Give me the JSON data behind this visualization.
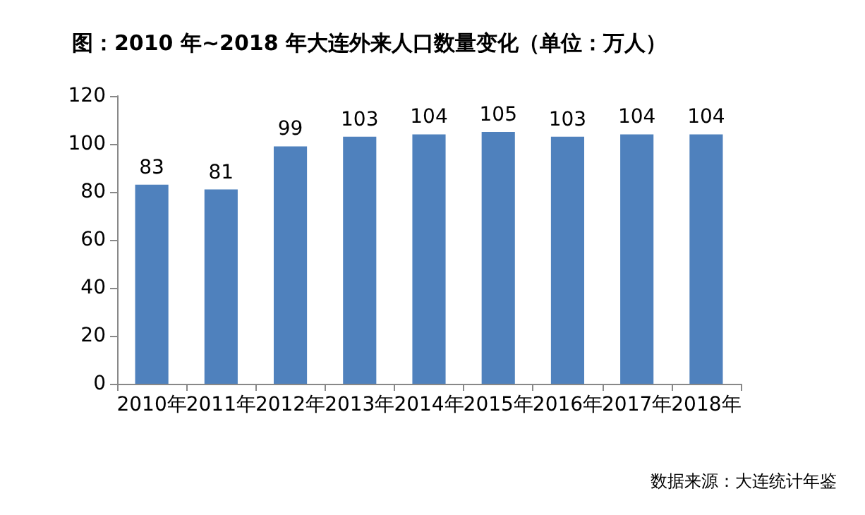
{
  "chart_data": {
    "type": "bar",
    "title": "图：2010 年~2018 年大连外来人口数量变化（单位：万人）",
    "categories": [
      "2010年",
      "2011年",
      "2012年",
      "2013年",
      "2014年",
      "2015年",
      "2016年",
      "2017年",
      "2018年"
    ],
    "values": [
      83,
      81,
      99,
      103,
      104,
      105,
      103,
      104,
      104
    ],
    "color": "#4f81bd",
    "ylim": [
      0,
      120
    ],
    "yticks": [
      0,
      20,
      40,
      60,
      80,
      100,
      120
    ],
    "data_labels": true,
    "grid": false,
    "annotations": [
      "数据来源：大连统计年鉴"
    ]
  }
}
